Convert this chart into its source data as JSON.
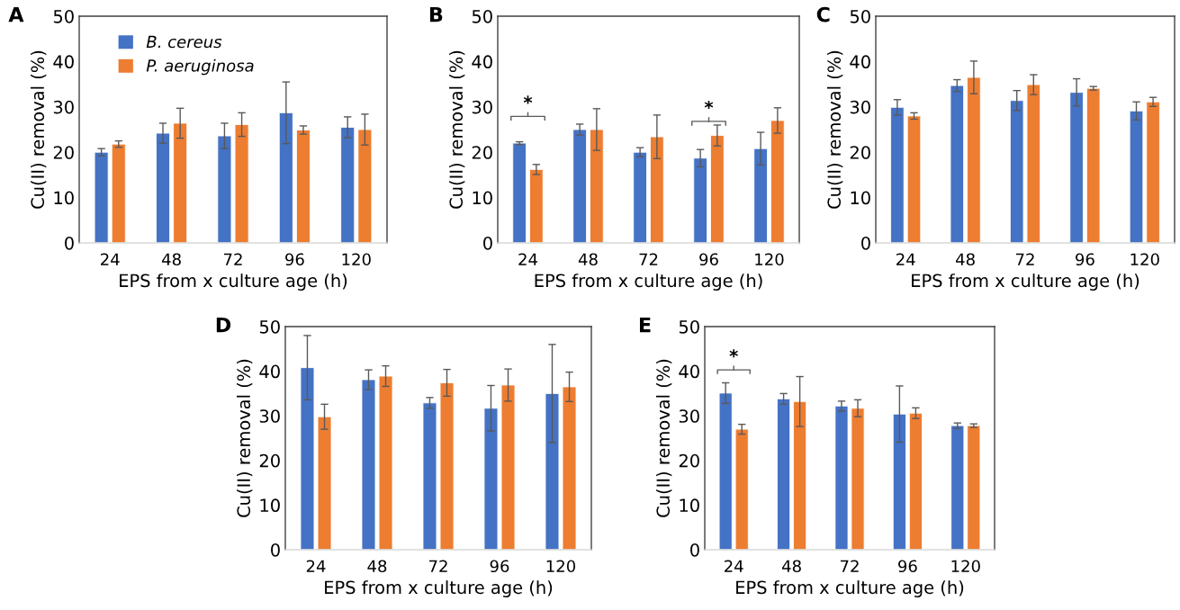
{
  "chart_data": [
    {
      "type": "bar",
      "title": "A",
      "xlabel": "EPS from x culture age (h)",
      "ylabel": "Cu(II) removal (%)",
      "categories": [
        "24",
        "48",
        "72",
        "96",
        "120"
      ],
      "ylim": [
        0,
        50
      ],
      "yticks": [
        0,
        10,
        20,
        30,
        40,
        50
      ],
      "grid": false,
      "legend": "top left",
      "series": [
        {
          "name": "B. cereus",
          "color": "#4472c4",
          "values": [
            20,
            24.2,
            23.6,
            28.7,
            25.5
          ],
          "errors": [
            0.8,
            2.2,
            2.8,
            6.8,
            2.3
          ]
        },
        {
          "name": "P. aeruginosa",
          "color": "#ed7d31",
          "values": [
            21.8,
            26.4,
            26.1,
            24.9,
            25
          ],
          "errors": [
            0.7,
            3.3,
            2.6,
            0.9,
            3.4
          ]
        }
      ]
    },
    {
      "type": "bar",
      "title": "B",
      "xlabel": "EPS from x culture age (h)",
      "ylabel": "Cu(II) removal (%)",
      "categories": [
        "24",
        "48",
        "72",
        "96",
        "120"
      ],
      "ylim": [
        0,
        50
      ],
      "yticks": [
        0,
        10,
        20,
        30,
        40,
        50
      ],
      "grid": false,
      "series": [
        {
          "color": "#4472c4",
          "values": [
            22,
            25,
            20,
            18.7,
            20.8
          ],
          "errors": [
            0.3,
            1.2,
            1,
            1.9,
            3.6
          ]
        },
        {
          "color": "#ed7d31",
          "values": [
            16.2,
            25,
            23.4,
            23.7,
            27
          ],
          "errors": [
            1.1,
            4.6,
            4.8,
            2.3,
            2.8
          ]
        }
      ],
      "annotations": [
        "*",
        "*"
      ]
    },
    {
      "type": "bar",
      "title": "C",
      "xlabel": "EPS from x culture age (h)",
      "ylabel": "Cu(II) removal (%)",
      "categories": [
        "24",
        "48",
        "72",
        "96",
        "120"
      ],
      "ylim": [
        0,
        50
      ],
      "yticks": [
        0,
        10,
        20,
        30,
        40,
        50
      ],
      "grid": false,
      "series": [
        {
          "color": "#4472c4",
          "values": [
            29.9,
            34.7,
            31.4,
            33.2,
            29.1
          ],
          "errors": [
            1.7,
            1.3,
            2.2,
            3,
            2
          ]
        },
        {
          "color": "#ed7d31",
          "values": [
            28,
            36.5,
            34.9,
            34.1,
            31.1
          ],
          "errors": [
            0.7,
            3.6,
            2.2,
            0.4,
            1
          ]
        }
      ]
    },
    {
      "type": "bar",
      "title": "D",
      "xlabel": "EPS from x culture age (h)",
      "ylabel": "Cu(II) removal (%)",
      "categories": [
        "24",
        "48",
        "72",
        "96",
        "120"
      ],
      "ylim": [
        0,
        50
      ],
      "yticks": [
        0,
        10,
        20,
        30,
        40,
        50
      ],
      "grid": false,
      "series": [
        {
          "color": "#4472c4",
          "values": [
            40.8,
            38.1,
            32.9,
            31.7,
            35
          ],
          "errors": [
            7.2,
            2.2,
            1.2,
            5.1,
            11
          ]
        },
        {
          "color": "#ed7d31",
          "values": [
            29.8,
            38.9,
            37.4,
            36.9,
            36.5
          ],
          "errors": [
            2.8,
            2.3,
            3,
            3.6,
            3.3
          ]
        }
      ]
    },
    {
      "type": "bar",
      "title": "E",
      "xlabel": "EPS from x culture age (h)",
      "ylabel": "Cu(II) removal (%)",
      "categories": [
        "24",
        "48",
        "72",
        "96",
        "120"
      ],
      "ylim": [
        0,
        50
      ],
      "yticks": [
        0,
        10,
        20,
        30,
        40,
        50
      ],
      "grid": false,
      "series": [
        {
          "color": "#4472c4",
          "values": [
            35.1,
            33.8,
            32.2,
            30.4,
            27.8
          ],
          "errors": [
            2.3,
            1.2,
            1.1,
            6.3,
            0.6
          ]
        },
        {
          "color": "#ed7d31",
          "values": [
            27,
            33.2,
            31.7,
            30.6,
            27.8
          ],
          "errors": [
            1.1,
            5.6,
            1.9,
            1.2,
            0.4
          ]
        }
      ],
      "annotations": [
        "*"
      ]
    }
  ]
}
